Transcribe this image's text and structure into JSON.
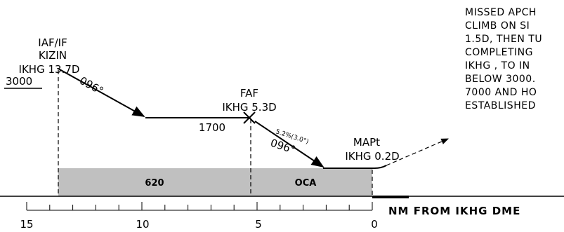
{
  "profile": {
    "fixes": [
      {
        "name": "IAF/IF",
        "fix": "KIZIN",
        "distance": "IKHG  13.7D"
      },
      {
        "name": "FAF",
        "distance": "IKHG  5.3D"
      },
      {
        "name": "MAPt",
        "distance": "IKHG  0.2D"
      }
    ],
    "altitude": "3000",
    "initial_track": "096°",
    "step_altitude": "1700",
    "glide_path": "5.2%(3.0°)",
    "final_track": "096°",
    "oca_values": [
      "620",
      "OCA"
    ],
    "missed_approach": [
      "MISSED APCH",
      "CLIMB ON SI",
      "1.5D, THEN TU",
      "COMPLETING",
      "IKHG , TO IN",
      "BELOW 3000.",
      "7000 AND HO",
      "ESTABLISHED"
    ],
    "scale_labels": [
      "15",
      "10",
      "5",
      "0"
    ],
    "scale_title": "NM  FROM  IKHG  DME"
  }
}
